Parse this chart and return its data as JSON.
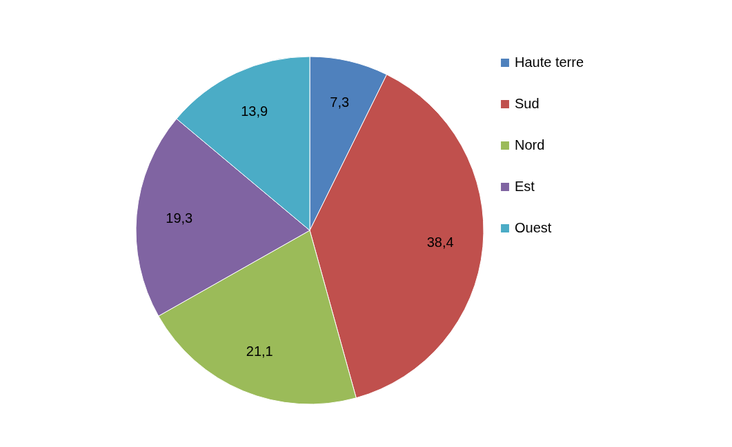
{
  "chart_data": {
    "type": "pie",
    "categories": [
      "Haute terre",
      "Sud",
      "Nord",
      "Est",
      "Ouest"
    ],
    "values": [
      7.3,
      38.4,
      21.1,
      19.3,
      13.9
    ],
    "value_labels": [
      "7,3",
      "38,4",
      "21,1",
      "19,3",
      "13,9"
    ],
    "colors": [
      "#4f81bd",
      "#c0504d",
      "#9bbb59",
      "#8064a2",
      "#4bacc6"
    ],
    "legend": "right"
  }
}
